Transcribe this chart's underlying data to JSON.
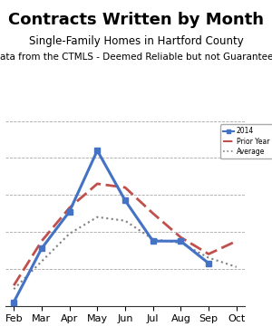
{
  "title": "Contracts Written by Month",
  "subtitle1": "Single-Family Homes in Hartford County",
  "subtitle2": "Data from the CTMLS - Deemed Reliable but not Guaranteed",
  "x_labels": [
    "Feb",
    "Mar",
    "Apr",
    "May",
    "Jun",
    "Jul",
    "Aug",
    "Sep",
    "Oct"
  ],
  "line_2014": {
    "x": [
      0,
      1,
      2,
      3,
      4,
      5,
      6,
      7
    ],
    "y": [
      10,
      155,
      255,
      420,
      285,
      175,
      175,
      115
    ],
    "color": "#4472C4",
    "lw": 2.2,
    "marker": "s",
    "markersize": 4.5,
    "label": "2014"
  },
  "line_prior1": {
    "x": [
      0,
      1,
      2,
      3,
      4,
      5,
      6,
      7,
      8
    ],
    "y": [
      55,
      175,
      265,
      330,
      320,
      250,
      185,
      140,
      175
    ],
    "color": "#C0504D",
    "lw": 2.0,
    "label": "Prior Year"
  },
  "line_prior2": {
    "x": [
      0,
      1,
      2,
      3,
      4,
      5,
      6,
      7,
      8
    ],
    "y": [
      45,
      120,
      195,
      240,
      230,
      180,
      170,
      130,
      105
    ],
    "color": "#808080",
    "lw": 1.5,
    "label": "Average"
  },
  "ylim": [
    0,
    500
  ],
  "yticks": [
    0,
    100,
    200,
    300,
    400,
    500
  ],
  "background_color": "#ffffff",
  "grid_color": "#808080",
  "title_fontsize": 13,
  "subtitle_fontsize": 8.5
}
